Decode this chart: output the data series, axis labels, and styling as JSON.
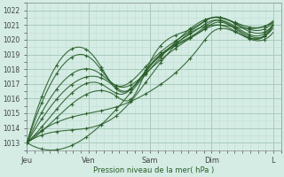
{
  "xlabel": "Pression niveau de la mer( hPa )",
  "bg_color": "#d4ece4",
  "grid_color_major": "#aacabc",
  "grid_color_minor": "#c0dcd4",
  "line_color": "#2a5e2a",
  "ylim": [
    1012.5,
    1022.5
  ],
  "xlim": [
    0.0,
    4.1
  ],
  "xtick_positions": [
    0,
    1,
    2,
    3,
    4
  ],
  "xtick_labels": [
    "Jeu",
    "Ven",
    "Sam",
    "Dim",
    "L"
  ],
  "ytick_values": [
    1013,
    1014,
    1015,
    1016,
    1017,
    1018,
    1019,
    1020,
    1021,
    1022
  ]
}
